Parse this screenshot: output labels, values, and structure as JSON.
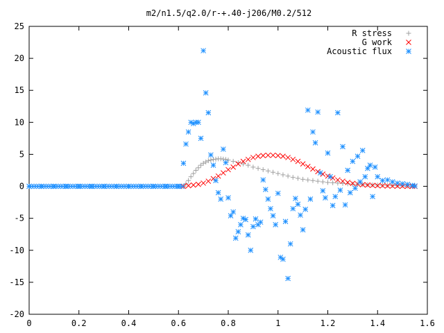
{
  "chart_data": {
    "type": "scatter",
    "title": "m2/n1.5/q2.0/r-+.40-j206/M0.2/512",
    "xlabel": "",
    "ylabel": "",
    "xlim": [
      0,
      1.6
    ],
    "ylim": [
      -20,
      25
    ],
    "xticks": [
      "0",
      "0.2",
      "0.4",
      "0.6",
      "0.8",
      "1",
      "1.2",
      "1.4",
      "1.6"
    ],
    "yticks": [
      "-20",
      "-15",
      "-10",
      "-5",
      "0",
      "5",
      "10",
      "15",
      "20",
      "25"
    ],
    "grid": false,
    "legend_position": "top-right",
    "series": [
      {
        "name": "R stress",
        "marker": "plus",
        "color": "#a0a0a0",
        "x": [
          0.62,
          0.63,
          0.64,
          0.65,
          0.66,
          0.67,
          0.68,
          0.69,
          0.7,
          0.71,
          0.72,
          0.73,
          0.74,
          0.75,
          0.76,
          0.77,
          0.78,
          0.79,
          0.8,
          0.82,
          0.84,
          0.86,
          0.88,
          0.9,
          0.92,
          0.94,
          0.96,
          0.98,
          1.0,
          1.02,
          1.04,
          1.06,
          1.08,
          1.1,
          1.12,
          1.14,
          1.16,
          1.18,
          1.2,
          1.22,
          1.24,
          1.26,
          1.28,
          1.3,
          1.32,
          1.34,
          1.36,
          1.38,
          1.4,
          1.42,
          1.44,
          1.46,
          1.48,
          1.5,
          1.52,
          1.54,
          1.55
        ],
        "y": [
          0.0,
          0.4,
          0.9,
          1.5,
          2.0,
          2.5,
          2.9,
          3.3,
          3.6,
          3.8,
          4.0,
          4.1,
          4.2,
          4.25,
          4.3,
          4.3,
          4.25,
          4.2,
          4.1,
          3.9,
          3.7,
          3.5,
          3.3,
          3.0,
          2.8,
          2.6,
          2.4,
          2.2,
          2.0,
          1.8,
          1.6,
          1.4,
          1.25,
          1.1,
          1.0,
          0.9,
          0.8,
          0.7,
          0.6,
          0.55,
          0.5,
          0.45,
          0.4,
          0.35,
          0.3,
          0.28,
          0.25,
          0.22,
          0.2,
          0.18,
          0.15,
          0.12,
          0.1,
          0.08,
          0.05,
          0.03,
          0.02
        ]
      },
      {
        "name": "G work",
        "marker": "cross",
        "color": "#ff0000",
        "x": [
          0.62,
          0.64,
          0.66,
          0.68,
          0.7,
          0.72,
          0.74,
          0.76,
          0.78,
          0.8,
          0.82,
          0.84,
          0.86,
          0.88,
          0.9,
          0.92,
          0.94,
          0.96,
          0.98,
          1.0,
          1.02,
          1.04,
          1.06,
          1.08,
          1.1,
          1.12,
          1.14,
          1.16,
          1.18,
          1.2,
          1.22,
          1.24,
          1.26,
          1.28,
          1.3,
          1.32,
          1.34,
          1.36,
          1.38,
          1.4,
          1.42,
          1.44,
          1.46,
          1.48,
          1.5,
          1.52,
          1.54,
          1.55
        ],
        "y": [
          0.0,
          0.1,
          0.2,
          0.3,
          0.5,
          0.8,
          1.2,
          1.6,
          2.1,
          2.6,
          3.0,
          3.5,
          3.9,
          4.2,
          4.5,
          4.7,
          4.8,
          4.85,
          4.85,
          4.8,
          4.7,
          4.5,
          4.2,
          3.9,
          3.5,
          3.1,
          2.7,
          2.3,
          1.9,
          1.6,
          1.3,
          1.0,
          0.8,
          0.6,
          0.45,
          0.35,
          0.25,
          0.2,
          0.15,
          0.1,
          0.08,
          0.06,
          0.04,
          0.03,
          0.02,
          0.01,
          0.0,
          0.0
        ]
      },
      {
        "name": "Acoustic flux",
        "marker": "star",
        "color": "#1e90ff",
        "x": [
          0.0,
          0.05,
          0.1,
          0.15,
          0.2,
          0.25,
          0.3,
          0.35,
          0.4,
          0.45,
          0.5,
          0.55,
          0.6,
          0.62,
          0.63,
          0.64,
          0.65,
          0.66,
          0.67,
          0.68,
          0.69,
          0.7,
          0.71,
          0.72,
          0.73,
          0.74,
          0.75,
          0.76,
          0.77,
          0.78,
          0.79,
          0.8,
          0.81,
          0.82,
          0.83,
          0.84,
          0.85,
          0.86,
          0.87,
          0.88,
          0.89,
          0.9,
          0.91,
          0.92,
          0.93,
          0.94,
          0.95,
          0.96,
          0.97,
          0.98,
          0.99,
          1.0,
          1.01,
          1.02,
          1.03,
          1.04,
          1.05,
          1.06,
          1.07,
          1.08,
          1.09,
          1.1,
          1.11,
          1.12,
          1.13,
          1.14,
          1.15,
          1.16,
          1.17,
          1.18,
          1.19,
          1.2,
          1.21,
          1.22,
          1.23,
          1.24,
          1.25,
          1.26,
          1.27,
          1.28,
          1.29,
          1.3,
          1.31,
          1.32,
          1.33,
          1.34,
          1.35,
          1.36,
          1.37,
          1.38,
          1.39,
          1.4,
          1.42,
          1.44,
          1.46,
          1.48,
          1.5,
          1.52,
          1.54,
          1.55
        ],
        "y": [
          0,
          0,
          0,
          0,
          0,
          0,
          0,
          0,
          0,
          0,
          0,
          0,
          0,
          3.6,
          6.6,
          8.5,
          10.0,
          9.8,
          10.0,
          10.0,
          7.5,
          21.2,
          14.6,
          11.5,
          4.9,
          3.3,
          0.9,
          -1.0,
          -2.0,
          5.8,
          3.7,
          -1.8,
          -4.6,
          -4.0,
          -8.1,
          -7.1,
          -6.0,
          -5.0,
          -5.2,
          -7.6,
          -10.0,
          -6.3,
          -5.1,
          -6.0,
          -5.6,
          1.0,
          -0.5,
          -2.0,
          -3.5,
          -4.6,
          -6.0,
          -1.1,
          -11.1,
          -11.4,
          -5.5,
          -14.4,
          -9.0,
          -3.5,
          -1.9,
          -2.8,
          -4.5,
          -6.8,
          -3.6,
          11.9,
          -2.0,
          8.5,
          6.8,
          11.6,
          2.1,
          -0.7,
          -1.8,
          5.2,
          1.5,
          -3.0,
          -1.6,
          11.5,
          -0.6,
          6.2,
          -2.9,
          2.5,
          -1.0,
          3.9,
          -0.3,
          4.7,
          0.7,
          5.6,
          1.5,
          2.8,
          3.3,
          -1.6,
          3.0,
          1.5,
          0.9,
          1.0,
          0.7,
          0.5,
          0.4,
          0.3,
          0.15,
          0.05
        ]
      }
    ]
  }
}
